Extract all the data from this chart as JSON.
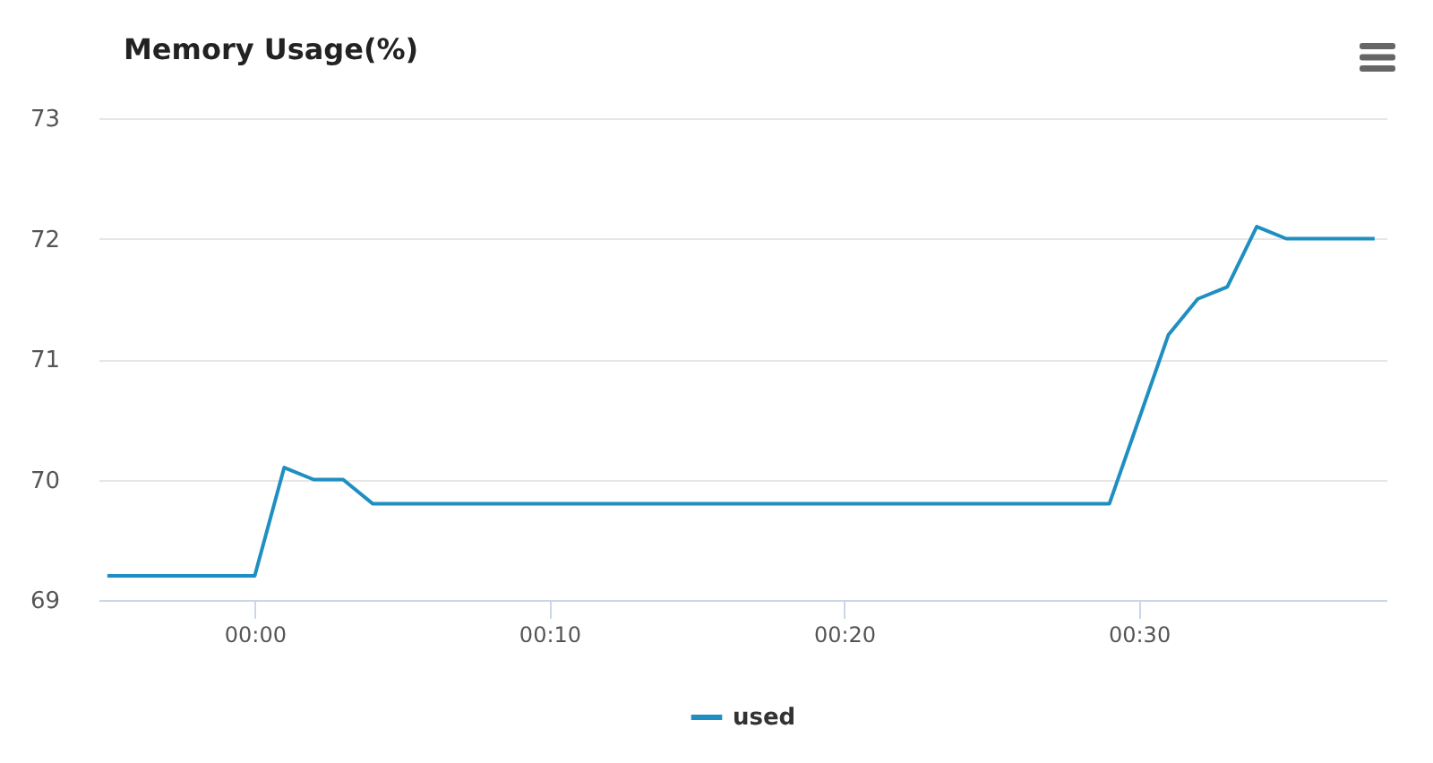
{
  "chart_data": {
    "type": "line",
    "title": "Memory Usage(%)",
    "x": [
      -5,
      -4,
      -3,
      -2,
      -1,
      0,
      1,
      2,
      3,
      4,
      5,
      6,
      7,
      8,
      9,
      10,
      11,
      12,
      13,
      14,
      15,
      16,
      17,
      18,
      19,
      20,
      21,
      22,
      23,
      24,
      25,
      26,
      27,
      28,
      29,
      30,
      31,
      32,
      33,
      34,
      35,
      36,
      37,
      38
    ],
    "series": [
      {
        "name": "used",
        "color": "#1f8fc1",
        "values": [
          69.2,
          69.2,
          69.2,
          69.2,
          69.2,
          69.2,
          70.1,
          70.0,
          70.0,
          69.8,
          69.8,
          69.8,
          69.8,
          69.8,
          69.8,
          69.8,
          69.8,
          69.8,
          69.8,
          69.8,
          69.8,
          69.8,
          69.8,
          69.8,
          69.8,
          69.8,
          69.8,
          69.8,
          69.8,
          69.8,
          69.8,
          69.8,
          69.8,
          69.8,
          69.8,
          70.5,
          71.2,
          71.5,
          71.6,
          72.1,
          72.0,
          72.0,
          72.0,
          72.0
        ]
      }
    ],
    "xlim": [
      -5.3,
      38.4
    ],
    "xticks": [
      {
        "value": 0,
        "label": "00:00"
      },
      {
        "value": 10,
        "label": "00:10"
      },
      {
        "value": 20,
        "label": "00:20"
      },
      {
        "value": 30,
        "label": "00:30"
      }
    ],
    "ylim": [
      69,
      73
    ],
    "yticks": [
      69,
      70,
      71,
      72,
      73
    ],
    "grid": "y",
    "legend": "bottom",
    "marker": "none",
    "line_style": "solid"
  }
}
